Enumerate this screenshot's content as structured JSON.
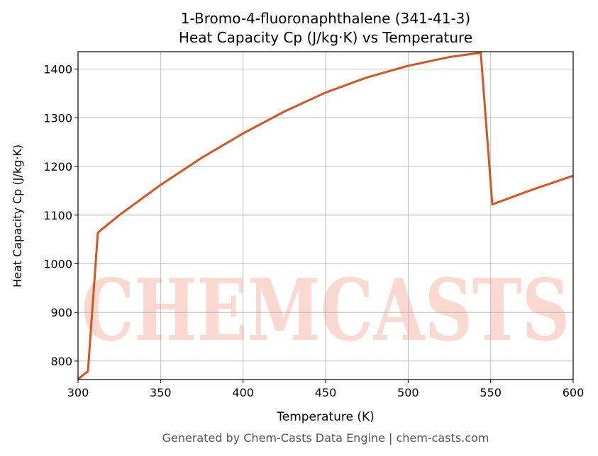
{
  "chart_data": {
    "type": "line",
    "title": "1-Bromo-4-fluoronaphthalene (341-41-3)",
    "subtitle": "Heat Capacity Cp (J/kg·K) vs Temperature",
    "xlabel": "Temperature (K)",
    "ylabel": "Heat Capacity Cp (J/kg·K)",
    "footer": "Generated by Chem-Casts Data Engine | chem-casts.com",
    "watermark": "CHEMCASTS",
    "x": [
      300,
      306,
      312,
      325,
      350,
      375,
      400,
      425,
      450,
      475,
      500,
      525,
      544,
      551,
      575,
      600
    ],
    "series": [
      {
        "name": "Cp",
        "color": "#d9541e",
        "values": [
          763,
          779,
          1064,
          1100,
          1162,
          1218,
          1268,
          1313,
          1352,
          1383,
          1407,
          1425,
          1434,
          1122,
          1152,
          1181
        ]
      }
    ],
    "xlim": [
      300,
      600
    ],
    "xticks": [
      300,
      350,
      400,
      450,
      500,
      550,
      600
    ],
    "ylim": [
      762,
      1436
    ],
    "yticks": [
      800,
      900,
      1000,
      1100,
      1200,
      1300,
      1400
    ],
    "grid": true
  }
}
